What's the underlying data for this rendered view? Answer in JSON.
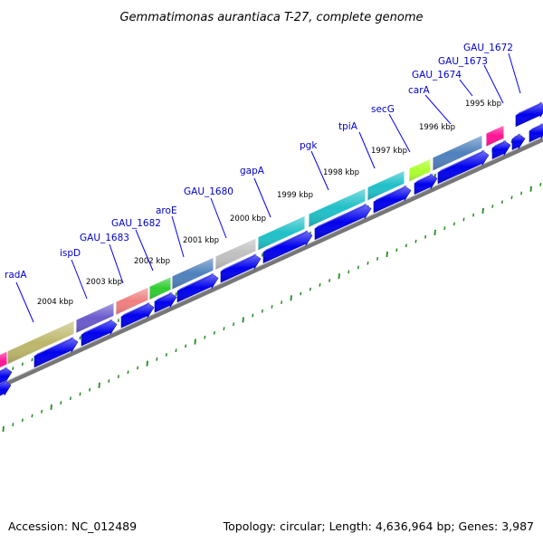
{
  "title": "Gemmatimonas aurantiaca T-27, complete genome",
  "footer": {
    "accession": "Accession: NC_012489",
    "summary": "Topology: circular; Length: 4,636,964 bp; Genes: 3,987"
  },
  "colors": {
    "label": "#0000cc",
    "label_line": "#0000ff",
    "cds_arrow": "#0000ee",
    "backbone": "#808080",
    "dots": "#228b22"
  },
  "ticks": [
    "1995 kbp",
    "1996 kbp",
    "1997 kbp",
    "1998 kbp",
    "1999 kbp",
    "2000 kbp",
    "2001 kbp",
    "2002 kbp",
    "2003 kbp",
    "2004 kbp"
  ],
  "genes": [
    {
      "label": "GAU_1672",
      "color": "#0000ee"
    },
    {
      "label": "GAU_1673",
      "color": "#0000ee"
    },
    {
      "label": "GAU_1674",
      "color": "#ff1493"
    },
    {
      "label": "carA",
      "color": "#4f81bd"
    },
    {
      "label": "secG",
      "color": "#adff2f"
    },
    {
      "label": "tpiA",
      "color": "#20c0c8"
    },
    {
      "label": "pgk",
      "color": "#20c0c8"
    },
    {
      "label": "gapA",
      "color": "#20c0c8"
    },
    {
      "label": "GAU_1680",
      "color": "#c0c0c0"
    },
    {
      "label": "aroE",
      "color": "#4f81bd"
    },
    {
      "label": "GAU_1682",
      "color": "#32cd32"
    },
    {
      "label": "GAU_1683",
      "color": "#f08080"
    },
    {
      "label": "ispD",
      "color": "#6a5acd"
    },
    {
      "label": "radA",
      "color": "#bdb76b"
    }
  ]
}
